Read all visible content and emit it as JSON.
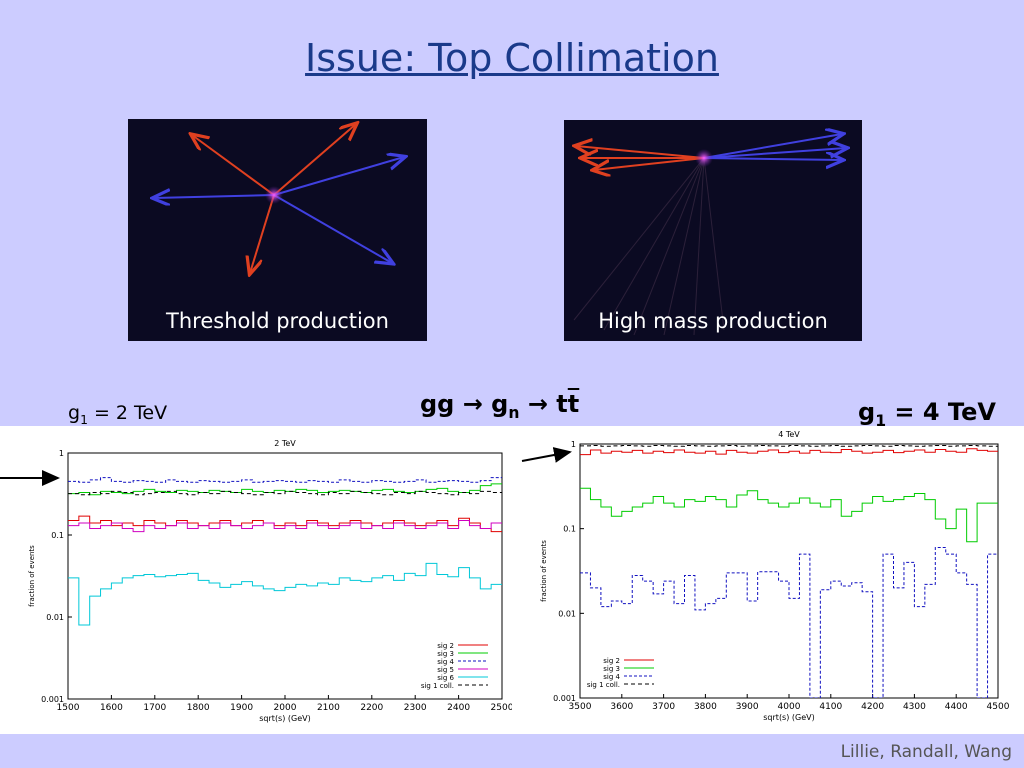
{
  "title": "Issue: Top Collimation",
  "images": [
    {
      "caption": "Threshold production"
    },
    {
      "caption": "High mass production"
    }
  ],
  "labels": {
    "left_g": "g",
    "left_sub": "1",
    "left_val": " = 2 TeV",
    "center_a": "gg → g",
    "center_sub": "n",
    "center_b": " → t",
    "center_bar": "t",
    "right_g": "g",
    "right_sub": "1",
    "right_val": " = 4 TeV"
  },
  "footer": "Lillie, Randall, Wang",
  "colors": {
    "sig2": "#e00000",
    "sig3": "#00cc00",
    "sig4": "#1010c0",
    "sig5": "#d000c0",
    "sig6": "#00c8d8",
    "sig1coll": "#000000"
  },
  "chart_data": [
    {
      "type": "line",
      "title": "2 TeV",
      "xlabel": "sqrt(s) (GeV)",
      "ylabel": "fraction of events",
      "xlim": [
        1500,
        2500
      ],
      "ylim": [
        0.001,
        1
      ],
      "log_y": true,
      "xticks": [
        "1500",
        "1600",
        "1700",
        "1800",
        "1900",
        "2000",
        "2100",
        "2200",
        "2300",
        "2400",
        "2500"
      ],
      "yticks": [
        "0.001",
        "0.01",
        "0.1",
        "1"
      ],
      "legend_position": "bottom-right",
      "x": [
        1500,
        1525,
        1550,
        1575,
        1600,
        1625,
        1650,
        1675,
        1700,
        1725,
        1750,
        1775,
        1800,
        1825,
        1850,
        1875,
        1900,
        1925,
        1950,
        1975,
        2000,
        2025,
        2050,
        2075,
        2100,
        2125,
        2150,
        2175,
        2200,
        2225,
        2250,
        2275,
        2300,
        2325,
        2350,
        2375,
        2400,
        2425,
        2450,
        2475
      ],
      "series": [
        {
          "name": "sig 2",
          "values": [
            0.15,
            0.17,
            0.14,
            0.15,
            0.13,
            0.14,
            0.13,
            0.15,
            0.14,
            0.13,
            0.15,
            0.14,
            0.13,
            0.14,
            0.15,
            0.13,
            0.14,
            0.15,
            0.14,
            0.13,
            0.14,
            0.13,
            0.15,
            0.14,
            0.13,
            0.14,
            0.15,
            0.14,
            0.13,
            0.14,
            0.15,
            0.14,
            0.13,
            0.14,
            0.15,
            0.13,
            0.16,
            0.14,
            0.12,
            0.11
          ]
        },
        {
          "name": "sig 3",
          "values": [
            0.32,
            0.33,
            0.31,
            0.34,
            0.33,
            0.32,
            0.34,
            0.36,
            0.34,
            0.33,
            0.35,
            0.34,
            0.33,
            0.35,
            0.34,
            0.33,
            0.36,
            0.34,
            0.33,
            0.35,
            0.34,
            0.36,
            0.35,
            0.33,
            0.34,
            0.35,
            0.34,
            0.33,
            0.35,
            0.36,
            0.34,
            0.33,
            0.34,
            0.36,
            0.37,
            0.34,
            0.33,
            0.35,
            0.4,
            0.42
          ]
        },
        {
          "name": "sig 4",
          "values": [
            0.45,
            0.44,
            0.47,
            0.5,
            0.45,
            0.44,
            0.46,
            0.45,
            0.44,
            0.47,
            0.45,
            0.44,
            0.46,
            0.45,
            0.44,
            0.45,
            0.47,
            0.44,
            0.45,
            0.46,
            0.45,
            0.44,
            0.46,
            0.45,
            0.44,
            0.47,
            0.45,
            0.44,
            0.46,
            0.45,
            0.44,
            0.45,
            0.47,
            0.44,
            0.45,
            0.46,
            0.45,
            0.44,
            0.46,
            0.5
          ]
        },
        {
          "name": "sig 5",
          "values": [
            0.13,
            0.14,
            0.12,
            0.13,
            0.14,
            0.12,
            0.11,
            0.13,
            0.12,
            0.13,
            0.14,
            0.12,
            0.13,
            0.12,
            0.14,
            0.13,
            0.12,
            0.13,
            0.14,
            0.12,
            0.13,
            0.12,
            0.14,
            0.13,
            0.12,
            0.13,
            0.14,
            0.12,
            0.13,
            0.12,
            0.14,
            0.13,
            0.12,
            0.13,
            0.14,
            0.12,
            0.15,
            0.13,
            0.12,
            0.14
          ]
        },
        {
          "name": "sig 6",
          "values": [
            0.03,
            0.008,
            0.018,
            0.022,
            0.026,
            0.03,
            0.032,
            0.033,
            0.031,
            0.032,
            0.033,
            0.034,
            0.028,
            0.026,
            0.023,
            0.025,
            0.027,
            0.024,
            0.022,
            0.021,
            0.023,
            0.025,
            0.024,
            0.026,
            0.025,
            0.03,
            0.028,
            0.027,
            0.03,
            0.032,
            0.028,
            0.034,
            0.032,
            0.045,
            0.033,
            0.031,
            0.04,
            0.03,
            0.022,
            0.025
          ]
        },
        {
          "name": "sig 1 coll.",
          "values": [
            0.32,
            0.31,
            0.33,
            0.32,
            0.34,
            0.33,
            0.31,
            0.32,
            0.33,
            0.34,
            0.32,
            0.31,
            0.33,
            0.32,
            0.34,
            0.33,
            0.32,
            0.31,
            0.33,
            0.32,
            0.34,
            0.33,
            0.32,
            0.31,
            0.33,
            0.32,
            0.34,
            0.33,
            0.32,
            0.31,
            0.33,
            0.32,
            0.34,
            0.33,
            0.32,
            0.31,
            0.33,
            0.32,
            0.34,
            0.33
          ]
        }
      ]
    },
    {
      "type": "line",
      "title": "4 TeV",
      "xlabel": "sqrt(s) (GeV)",
      "ylabel": "fraction of events",
      "xlim": [
        3500,
        4500
      ],
      "ylim": [
        0.001,
        1
      ],
      "log_y": true,
      "xticks": [
        "3500",
        "3600",
        "3700",
        "3800",
        "3900",
        "4000",
        "4100",
        "4200",
        "4300",
        "4400",
        "4500"
      ],
      "yticks": [
        "0.001",
        "0.01",
        "0.1",
        "1"
      ],
      "legend_position": "bottom-left",
      "x": [
        3500,
        3525,
        3550,
        3575,
        3600,
        3625,
        3650,
        3675,
        3700,
        3725,
        3750,
        3775,
        3800,
        3825,
        3850,
        3875,
        3900,
        3925,
        3950,
        3975,
        4000,
        4025,
        4050,
        4075,
        4100,
        4125,
        4150,
        4175,
        4200,
        4225,
        4250,
        4275,
        4300,
        4325,
        4350,
        4375,
        4400,
        4425,
        4450,
        4475
      ],
      "series": [
        {
          "name": "sig 2",
          "values": [
            0.75,
            0.85,
            0.78,
            0.82,
            0.8,
            0.84,
            0.78,
            0.82,
            0.79,
            0.85,
            0.8,
            0.78,
            0.82,
            0.76,
            0.84,
            0.8,
            0.78,
            0.82,
            0.85,
            0.79,
            0.82,
            0.78,
            0.84,
            0.8,
            0.79,
            0.86,
            0.82,
            0.78,
            0.8,
            0.84,
            0.79,
            0.82,
            0.85,
            0.8,
            0.86,
            0.82,
            0.8,
            0.88,
            0.84,
            0.82
          ]
        },
        {
          "name": "sig 3",
          "values": [
            0.3,
            0.22,
            0.18,
            0.14,
            0.16,
            0.18,
            0.2,
            0.24,
            0.2,
            0.18,
            0.22,
            0.21,
            0.24,
            0.22,
            0.18,
            0.25,
            0.28,
            0.22,
            0.2,
            0.18,
            0.2,
            0.23,
            0.2,
            0.18,
            0.22,
            0.14,
            0.16,
            0.2,
            0.24,
            0.21,
            0.22,
            0.24,
            0.26,
            0.22,
            0.13,
            0.1,
            0.17,
            0.07,
            0.2,
            0.2
          ]
        },
        {
          "name": "sig 4",
          "values": [
            0.03,
            0.02,
            0.012,
            0.014,
            0.013,
            0.028,
            0.024,
            0.017,
            0.024,
            0.013,
            0.028,
            0.011,
            0.013,
            0.015,
            0.03,
            0.03,
            0.014,
            0.031,
            0.031,
            0.024,
            0.015,
            0.05,
            0.0003,
            0.019,
            0.024,
            0.021,
            0.023,
            0.018,
            0.0003,
            0.05,
            0.02,
            0.04,
            0.012,
            0.022,
            0.06,
            0.05,
            0.03,
            0.022,
            0.0003,
            0.05
          ]
        },
        {
          "name": "sig 1 coll.",
          "values": [
            0.95,
            0.96,
            0.94,
            0.95,
            0.96,
            0.95,
            0.94,
            0.96,
            0.95,
            0.94,
            0.96,
            0.95,
            0.94,
            0.95,
            0.96,
            0.94,
            0.95,
            0.96,
            0.95,
            0.94,
            0.96,
            0.95,
            0.94,
            0.95,
            0.96,
            0.94,
            0.95,
            0.96,
            0.95,
            0.94,
            0.96,
            0.95,
            0.94,
            0.95,
            0.96,
            0.94,
            0.95,
            0.96,
            0.95,
            0.94
          ]
        }
      ]
    }
  ]
}
